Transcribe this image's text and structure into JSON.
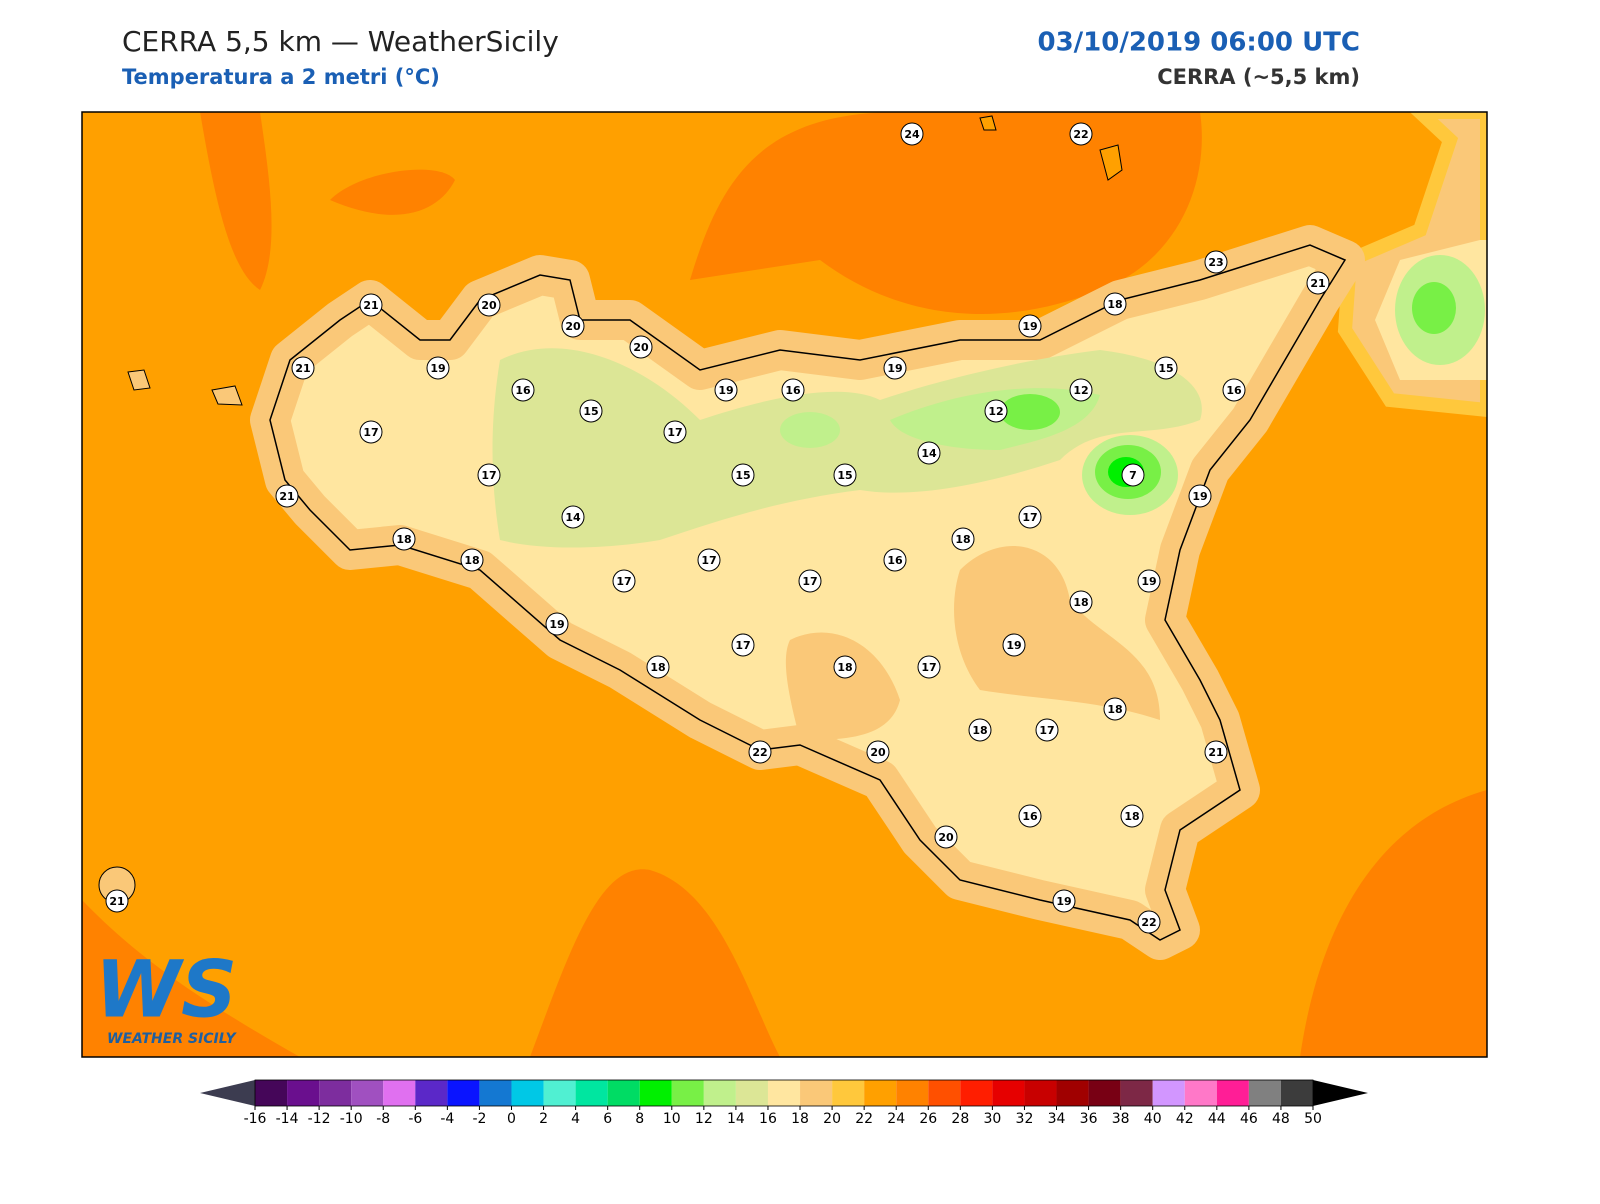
{
  "header": {
    "title": "CERRA 5,5 km — WeatherSicily",
    "subtitle": "Temperatura a 2 metri (°C)",
    "datetime": "03/10/2019 06:00 UTC",
    "model": "CERRA (~5,5 km)"
  },
  "stations": [
    24,
    22,
    23,
    21,
    18,
    19,
    21,
    20,
    20,
    20,
    21,
    19,
    16,
    15,
    19,
    16,
    19,
    15,
    12,
    16,
    12,
    17,
    17,
    14,
    17,
    15,
    15,
    7,
    19,
    21,
    14,
    17,
    18,
    18,
    18,
    17,
    16,
    17,
    17,
    19,
    18,
    19,
    19,
    17,
    18,
    18,
    17,
    18,
    18,
    17,
    22,
    20,
    21,
    20,
    16,
    18,
    19,
    22,
    21
  ],
  "colorbar": {
    "ticks": [
      -16,
      -14,
      -12,
      -10,
      -8,
      -6,
      -4,
      -2,
      0,
      2,
      4,
      6,
      8,
      10,
      12,
      14,
      16,
      18,
      20,
      22,
      24,
      26,
      28,
      30,
      32,
      34,
      36,
      38,
      40,
      42,
      44,
      46,
      48,
      50
    ],
    "colors": [
      "#450659",
      "#6a0f8e",
      "#7d2d9e",
      "#a050c0",
      "#e070f0",
      "#5b28c8",
      "#0a14ff",
      "#1478d2",
      "#00c8e6",
      "#50f0d2",
      "#00e6a0",
      "#00dc64",
      "#00f000",
      "#78f046",
      "#c0f08c",
      "#dce696",
      "#ffe6a0",
      "#fac878",
      "#ffc83c",
      "#ffa000",
      "#ff8200",
      "#ff5000",
      "#ff1e00",
      "#e60000",
      "#c80000",
      "#a00000",
      "#780014",
      "#7d2846",
      "#d296ff",
      "#ff78c8",
      "#ff1e96",
      "#808080",
      "#3c3c3c"
    ],
    "under_color": "#3c3c50",
    "over_color": "#000000"
  },
  "logo": {
    "text": "WS",
    "subtext": "WEATHER SICILY"
  }
}
